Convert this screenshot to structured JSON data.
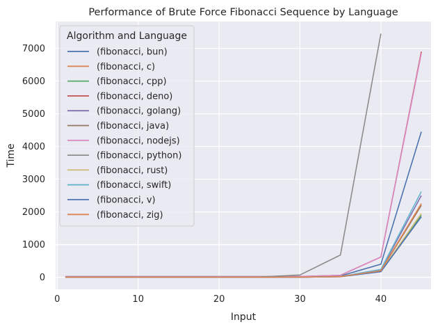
{
  "chart_data": {
    "type": "line",
    "title": "Performance of Brute Force Fibonacci Sequence by Language",
    "xlabel": "Input",
    "ylabel": "Time",
    "xlim": [
      -0.2,
      46.2
    ],
    "ylim": [
      -370,
      7820
    ],
    "xticks": [
      0,
      10,
      20,
      30,
      40
    ],
    "yticks": [
      0,
      1000,
      2000,
      3000,
      4000,
      5000,
      6000,
      7000
    ],
    "grid": true,
    "legend_title": "Algorithm and Language",
    "legend_placement": "upper-left",
    "series": [
      {
        "name": "(fibonacci, bun)",
        "color": "#4c72b0",
        "x": [
          1,
          5,
          10,
          15,
          20,
          25,
          30,
          35,
          40,
          45
        ],
        "y": [
          20,
          20,
          20,
          20,
          20,
          20,
          22,
          40,
          400,
          4450
        ]
      },
      {
        "name": "(fibonacci, c)",
        "color": "#dd8452",
        "x": [
          1,
          5,
          10,
          15,
          20,
          25,
          30,
          35,
          40,
          45
        ],
        "y": [
          1,
          1,
          1,
          1,
          1,
          1,
          3,
          20,
          200,
          2250
        ]
      },
      {
        "name": "(fibonacci, cpp)",
        "color": "#55a868",
        "x": [
          1,
          5,
          10,
          15,
          20,
          25,
          30,
          35,
          40,
          45
        ],
        "y": [
          1,
          1,
          1,
          1,
          1,
          1,
          3,
          18,
          180,
          1900
        ]
      },
      {
        "name": "(fibonacci, deno)",
        "color": "#c44e52",
        "x": [
          1,
          5,
          10,
          15,
          20,
          25,
          30,
          35,
          40,
          45
        ],
        "y": [
          20,
          20,
          20,
          20,
          20,
          20,
          22,
          60,
          620,
          6900
        ]
      },
      {
        "name": "(fibonacci, golang)",
        "color": "#8172b3",
        "x": [
          1,
          5,
          10,
          15,
          20,
          25,
          30,
          35,
          40,
          45
        ],
        "y": [
          1,
          1,
          1,
          1,
          1,
          1,
          3,
          20,
          220,
          2500
        ]
      },
      {
        "name": "(fibonacci, java)",
        "color": "#937860",
        "x": [
          1,
          5,
          10,
          15,
          20,
          25,
          30,
          35,
          40,
          45
        ],
        "y": [
          10,
          10,
          10,
          10,
          10,
          10,
          12,
          25,
          200,
          2200
        ]
      },
      {
        "name": "(fibonacci, nodejs)",
        "color": "#da8bc3",
        "x": [
          1,
          5,
          10,
          15,
          20,
          25,
          30,
          35,
          40,
          45
        ],
        "y": [
          20,
          20,
          20,
          20,
          20,
          20,
          25,
          60,
          620,
          6850
        ]
      },
      {
        "name": "(fibonacci, python)",
        "color": "#8c8c8c",
        "x": [
          1,
          5,
          10,
          15,
          20,
          25,
          30,
          35,
          40
        ],
        "y": [
          10,
          10,
          10,
          10,
          10,
          10,
          70,
          680,
          7450
        ]
      },
      {
        "name": "(fibonacci, rust)",
        "color": "#ccb974",
        "x": [
          1,
          5,
          10,
          15,
          20,
          25,
          30,
          35,
          40,
          45
        ],
        "y": [
          1,
          1,
          1,
          1,
          1,
          1,
          3,
          18,
          180,
          1950
        ]
      },
      {
        "name": "(fibonacci, swift)",
        "color": "#64b5cd",
        "x": [
          1,
          5,
          10,
          15,
          20,
          25,
          30,
          35,
          40,
          45
        ],
        "y": [
          1,
          1,
          1,
          1,
          1,
          1,
          3,
          22,
          240,
          2620
        ]
      },
      {
        "name": "(fibonacci, v)",
        "color": "#4c72b0",
        "x": [
          1,
          5,
          10,
          15,
          20,
          25,
          30,
          35,
          40,
          45
        ],
        "y": [
          1,
          1,
          1,
          1,
          1,
          1,
          3,
          16,
          170,
          1850
        ]
      },
      {
        "name": "(fibonacci, zig)",
        "color": "#dd8452",
        "x": [
          1,
          5,
          10,
          15,
          20,
          25,
          30,
          35,
          40,
          45
        ],
        "y": [
          1,
          1,
          1,
          1,
          1,
          1,
          3,
          20,
          200,
          2250
        ]
      }
    ]
  },
  "style": {
    "plot_background": "#eaeaf2",
    "grid_color": "#ffffff",
    "text_color": "#262626"
  }
}
